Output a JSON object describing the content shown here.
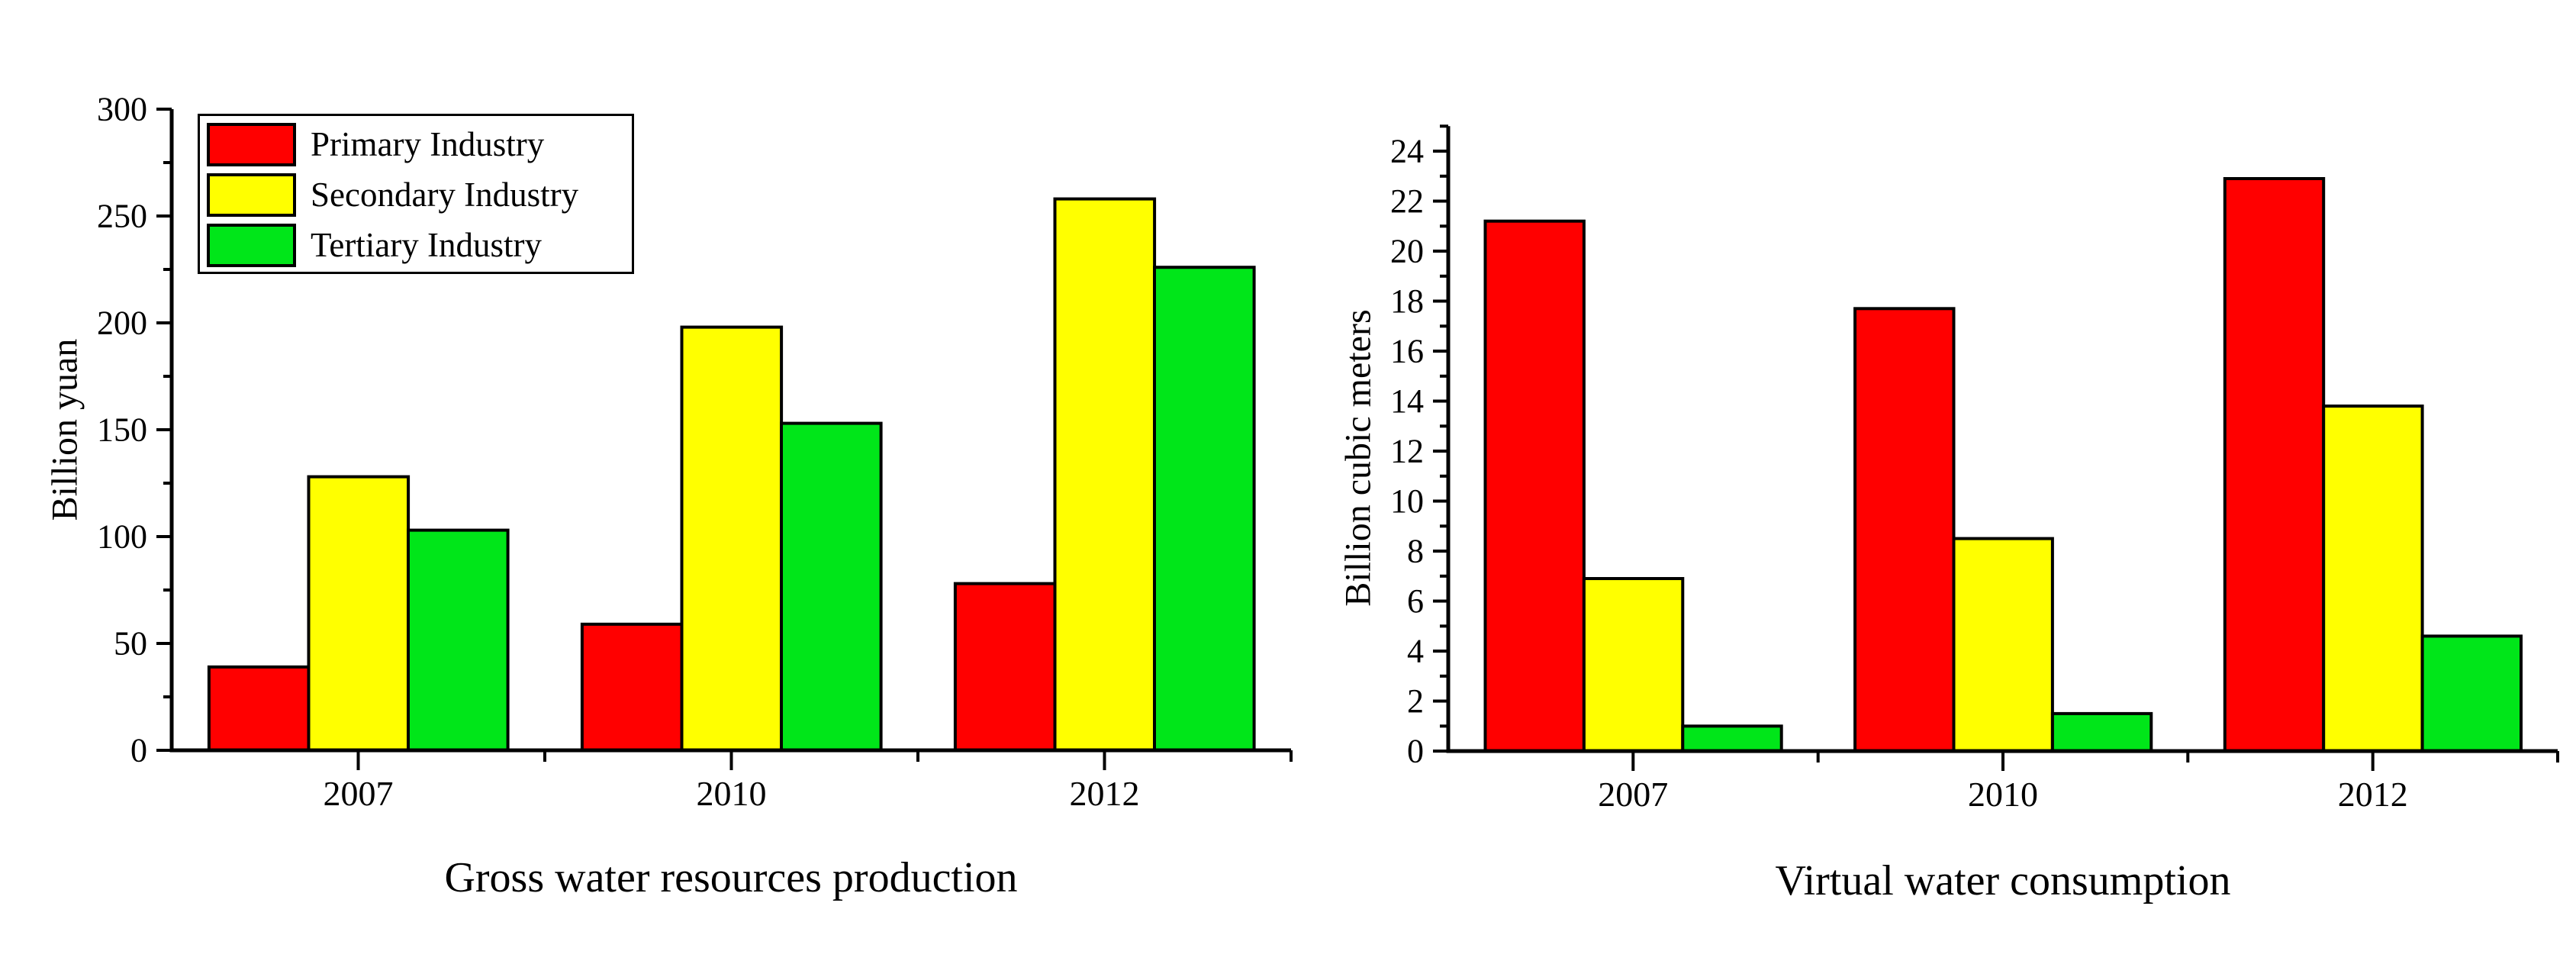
{
  "page": {
    "background": "#ffffff",
    "text_color": "#000000"
  },
  "legend": {
    "position": "top-left-inside-left-chart",
    "items": [
      {
        "label": "Primary Industry",
        "color": "#ff0000"
      },
      {
        "label": "Secondary Industry",
        "color": "#ffff00"
      },
      {
        "label": "Tertiary Industry",
        "color": "#00e619"
      }
    ]
  },
  "chart_data": [
    {
      "id": "left-chart",
      "type": "bar",
      "title": "Gross water resources production",
      "xlabel": "",
      "ylabel": "Billion yuan",
      "categories": [
        "2007",
        "2010",
        "2012"
      ],
      "series": [
        {
          "name": "Primary Industry",
          "color": "#ff0000",
          "values": [
            39,
            59,
            78
          ]
        },
        {
          "name": "Secondary Industry",
          "color": "#ffff00",
          "values": [
            128,
            198,
            258
          ]
        },
        {
          "name": "Tertiary Industry",
          "color": "#00e619",
          "values": [
            103,
            153,
            226
          ]
        }
      ],
      "ylim": [
        0,
        300
      ],
      "yticks": [
        0,
        50,
        100,
        150,
        200,
        250,
        300
      ],
      "ytick_minor_step": 25,
      "axis_top_value": 300,
      "grid": false,
      "legend_position": "top-left-inside",
      "bar_edge_color": "#000000"
    },
    {
      "id": "right-chart",
      "type": "bar",
      "title": "Virtual water consumption",
      "xlabel": "",
      "ylabel": "Billion cubic meters",
      "categories": [
        "2007",
        "2010",
        "2012"
      ],
      "series": [
        {
          "name": "Primary Industry",
          "color": "#ff0000",
          "values": [
            21.2,
            17.7,
            22.9
          ]
        },
        {
          "name": "Secondary Industry",
          "color": "#ffff00",
          "values": [
            6.9,
            8.5,
            13.8
          ]
        },
        {
          "name": "Tertiary Industry",
          "color": "#00e619",
          "values": [
            1.0,
            1.5,
            4.6
          ]
        }
      ],
      "ylim": [
        0,
        24
      ],
      "yticks": [
        0,
        2,
        4,
        6,
        8,
        10,
        12,
        14,
        16,
        18,
        20,
        22,
        24
      ],
      "ytick_minor_step": 1,
      "axis_top_value": 25,
      "grid": false,
      "legend_position": "none",
      "bar_edge_color": "#000000"
    }
  ]
}
